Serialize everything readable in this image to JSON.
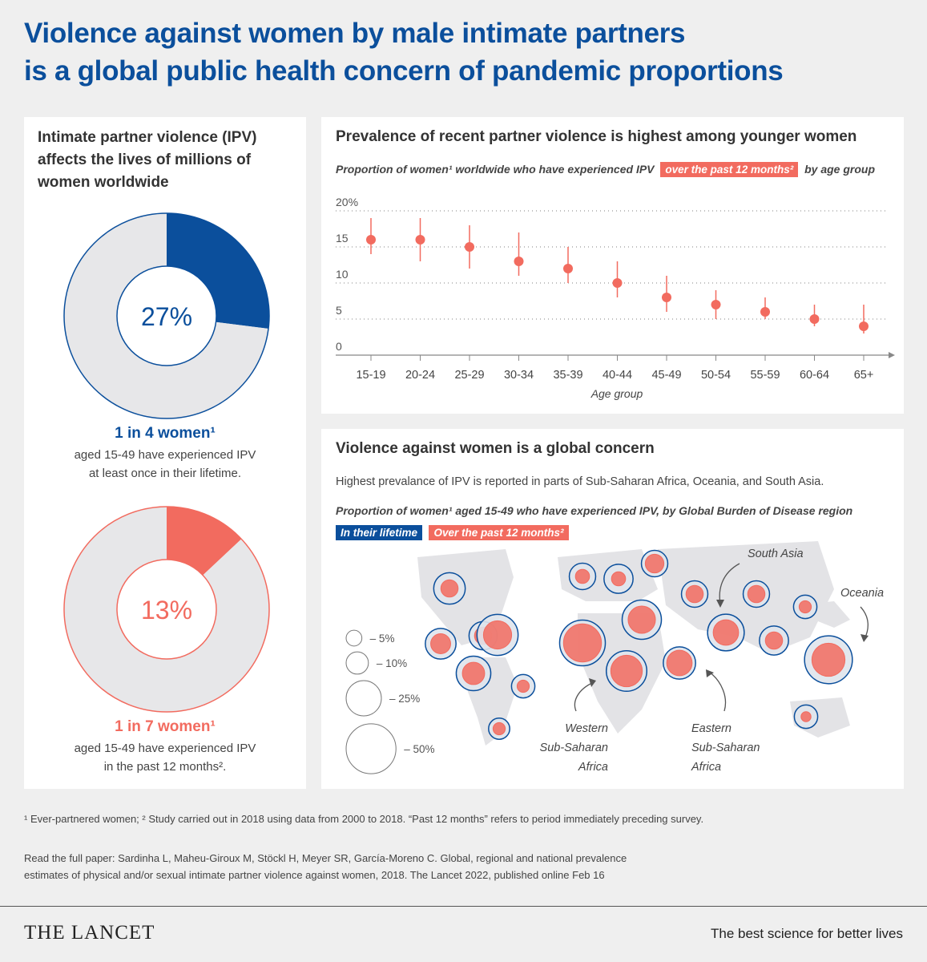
{
  "title": {
    "line1": "Violence against women by male intimate partners",
    "line2": "is a global public health concern of pandemic proportions"
  },
  "colors": {
    "blue": "#0b4f9c",
    "red": "#f26b5f",
    "grey": "#e7e7e9"
  },
  "left": {
    "heading": "Intimate partner violence (IPV) affects the lives of millions of women worldwide",
    "donut1": {
      "value": 27,
      "label": "27%",
      "stat": "1 in 4 women¹",
      "line1": "aged 15-49 have experienced IPV",
      "line2": "at least once in their lifetime."
    },
    "donut2": {
      "value": 13,
      "label": "13%",
      "stat": "1 in 7 women¹",
      "line1": "aged 15-49 have experienced IPV",
      "line2": "in the past 12 months²."
    }
  },
  "age_panel": {
    "title": "Prevalence of recent partner violence is highest among younger women",
    "subtitle_pre": "Proportion of women¹ worldwide who have experienced IPV",
    "subtitle_pill": "over the past 12 months²",
    "subtitle_post": "by age group"
  },
  "map_panel": {
    "title": "Violence against women is a global concern",
    "description": "Highest prevalance of IPV is reported in parts of Sub-Saharan Africa, Oceania, and South Asia.",
    "subtitle": "Proportion of women¹ aged 15-49 who have experienced IPV, by Global Burden of Disease region",
    "legend_lifetime": "In their lifetime",
    "legend_recent": "Over the past 12 months²",
    "size_legend": [
      "5%",
      "10%",
      "25%",
      "50%"
    ],
    "annotations": {
      "south_asia": "South Asia",
      "oceania": "Oceania",
      "western": [
        "Western",
        "Sub-Saharan",
        "Africa"
      ],
      "eastern": [
        "Eastern",
        "Sub-Saharan",
        "Africa"
      ]
    }
  },
  "chart_data": [
    {
      "type": "pie",
      "slices": [
        {
          "label": "Lifetime IPV",
          "value": 27
        },
        {
          "label": "",
          "value": 73
        }
      ],
      "center_label": "27%"
    },
    {
      "type": "pie",
      "slices": [
        {
          "label": "Past 12 months IPV",
          "value": 13
        },
        {
          "label": "",
          "value": 87
        }
      ],
      "center_label": "13%"
    },
    {
      "type": "scatter",
      "title": "Prevalence of recent partner violence is highest among younger women",
      "subtitle": "Proportion of women¹ worldwide who have experienced IPV over the past 12 months² by age group",
      "xlabel": "Age group",
      "ylabel": "",
      "categories": [
        "15-19",
        "20-24",
        "25-29",
        "30-34",
        "35-39",
        "40-44",
        "45-49",
        "50-54",
        "55-59",
        "60-64",
        "65+"
      ],
      "values": [
        16,
        16,
        15,
        13,
        12,
        10,
        8,
        7,
        6,
        5,
        4
      ],
      "lower": [
        14,
        13,
        12,
        11,
        10,
        8,
        6,
        5,
        5,
        4,
        3
      ],
      "upper": [
        19,
        19,
        18,
        17,
        15,
        13,
        11,
        9,
        8,
        7,
        7
      ],
      "ylim": [
        0,
        20
      ],
      "yticks": [
        "0",
        "5",
        "10",
        "15",
        "20%"
      ],
      "grid": true
    },
    {
      "type": "scatter",
      "title": "Violence against women is a global concern",
      "subtitle": "Proportion of women¹ aged 15-49 who have experienced IPV, by Global Burden of Disease region",
      "series": [
        {
          "name": "In their lifetime",
          "values": [
            20,
            16,
            24,
            34,
            19,
            11,
            9,
            14,
            17,
            14,
            31,
            42,
            33,
            21,
            14,
            14,
            27,
            17,
            11,
            46,
            11
          ]
        },
        {
          "name": "Over the past 12 months²",
          "values": [
            6,
            6,
            10,
            16,
            8,
            3,
            3,
            4,
            4,
            7,
            15,
            29,
            20,
            13,
            6,
            6,
            13,
            6,
            3,
            22,
            2
          ]
        }
      ],
      "size_legend": [
        "5%",
        "10%",
        "25%",
        "50%"
      ]
    }
  ],
  "footnote": "¹ Ever-partnered women; ² Study carried out in 2018 using data from 2000 to 2018. “Past 12 months” refers to period immediately preceding survey.",
  "reference": {
    "line1": "Read the full paper: Sardinha L, Maheu-Giroux M, Stöckl H, Meyer SR, García-Moreno C. Global, regional and national prevalence",
    "line2": "estimates of physical and/or sexual intimate partner violence against women, 2018. The Lancet 2022, published online Feb 16"
  },
  "footer": {
    "brand": "THE LANCET",
    "tagline": "The best science for better lives"
  }
}
